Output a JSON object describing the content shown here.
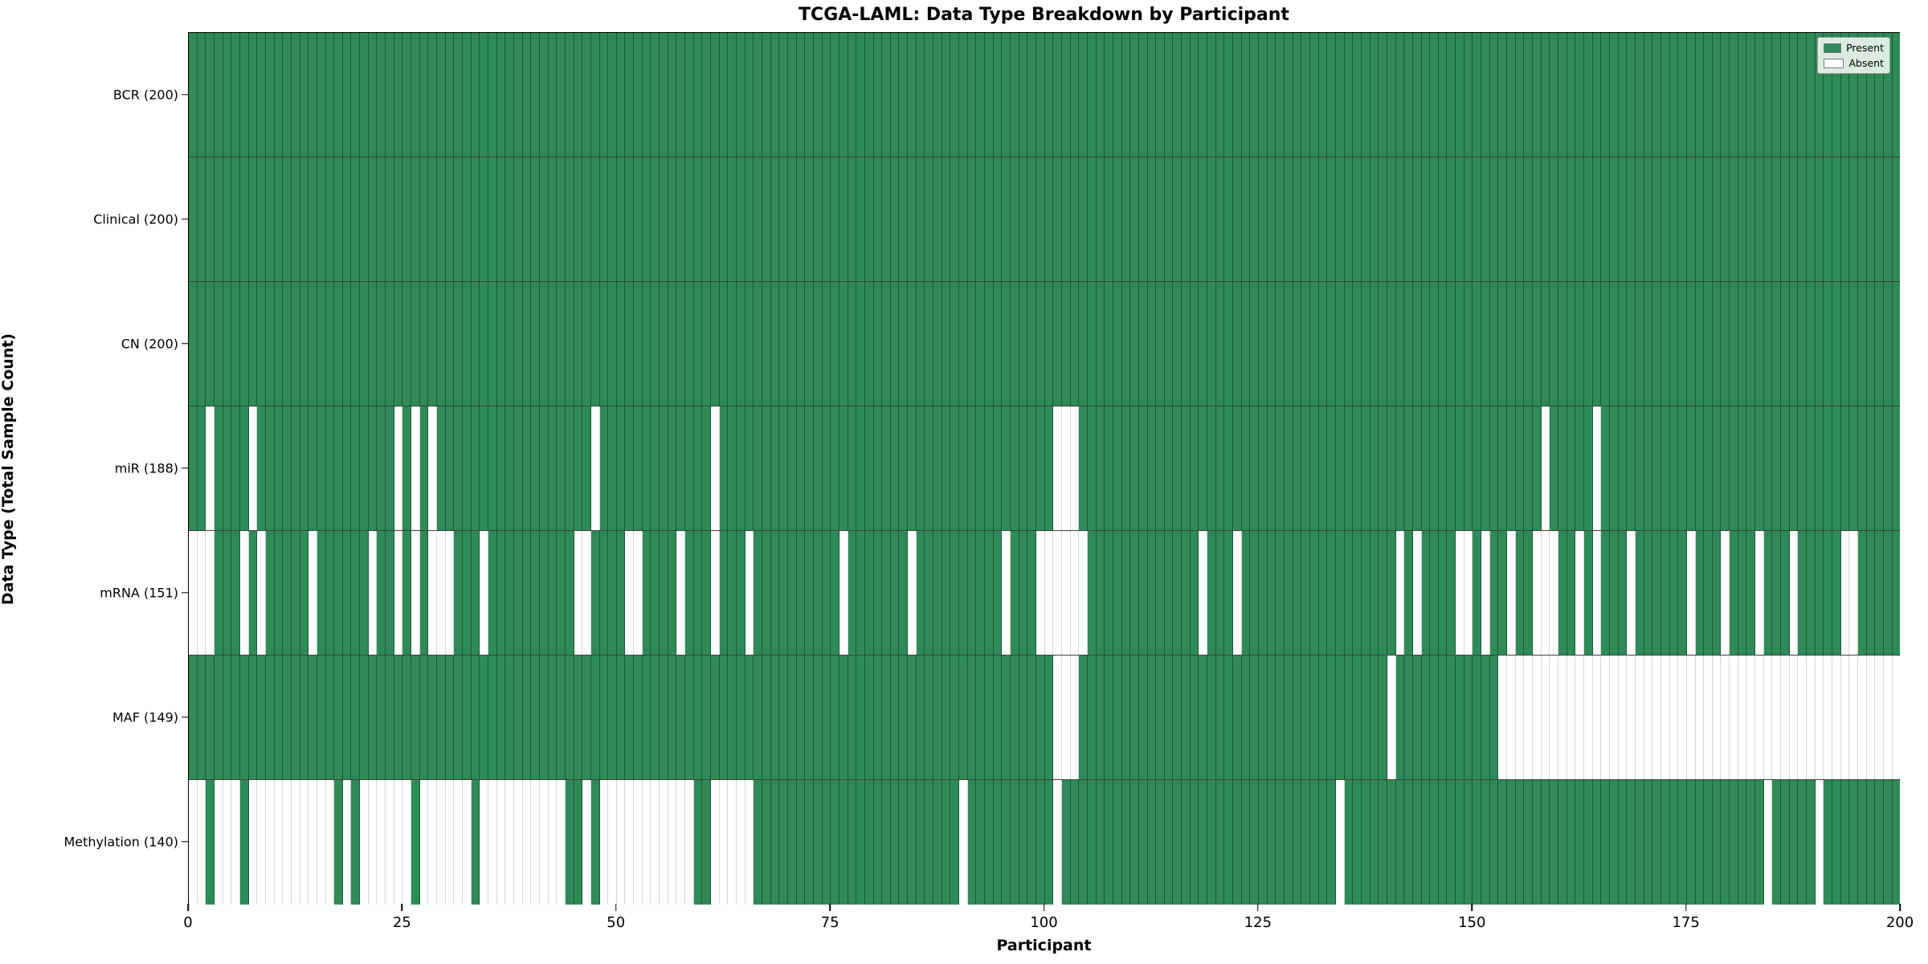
{
  "title": "TCGA-LAML: Data Type Breakdown by Participant",
  "xlabel": "Participant",
  "ylabel": "Data Type (Total Sample Count)",
  "legend": {
    "present_label": "Present",
    "absent_label": "Absent"
  },
  "colors": {
    "present": "#2E8B57",
    "absent": "#ffffff"
  },
  "x_ticks": [
    0,
    25,
    50,
    75,
    100,
    125,
    150,
    175,
    200
  ],
  "n_participants": 200,
  "chart_data": {
    "type": "heatmap",
    "title": "TCGA-LAML: Data Type Breakdown by Participant",
    "xlabel": "Participant",
    "ylabel": "Data Type (Total Sample Count)",
    "x_range": [
      0,
      200
    ],
    "legend_position": "upper right",
    "legend_entries": [
      "Present",
      "Absent"
    ],
    "rows": [
      {
        "name": "BCR",
        "label": "BCR (200)",
        "present_count": 200,
        "absent_count": 0,
        "absent_participants": []
      },
      {
        "name": "Clinical",
        "label": "Clinical (200)",
        "present_count": 200,
        "absent_count": 0,
        "absent_participants": []
      },
      {
        "name": "CN",
        "label": "CN (200)",
        "present_count": 200,
        "absent_count": 0,
        "absent_participants": []
      },
      {
        "name": "miR",
        "label": "miR (188)",
        "present_count": 188,
        "absent_count": 12,
        "absent_participants": [
          2,
          7,
          24,
          26,
          28,
          47,
          61,
          101,
          102,
          103,
          158,
          164
        ]
      },
      {
        "name": "mRNA",
        "label": "mRNA (151)",
        "present_count": 151,
        "absent_count": 49,
        "absent_participants": [
          0,
          1,
          2,
          6,
          8,
          14,
          21,
          24,
          26,
          28,
          29,
          30,
          34,
          45,
          46,
          51,
          52,
          57,
          61,
          65,
          76,
          84,
          95,
          99,
          100,
          101,
          102,
          103,
          104,
          118,
          122,
          141,
          143,
          148,
          149,
          151,
          154,
          157,
          158,
          159,
          162,
          164,
          168,
          175,
          179,
          183,
          187,
          193,
          194
        ]
      },
      {
        "name": "MAF",
        "label": "MAF (149)",
        "present_count": 149,
        "absent_count": 51,
        "absent_participants": [
          101,
          102,
          103,
          140,
          153,
          154,
          155,
          156,
          157,
          158,
          159,
          160,
          161,
          162,
          163,
          164,
          165,
          166,
          167,
          168,
          169,
          170,
          171,
          172,
          173,
          174,
          175,
          176,
          177,
          178,
          179,
          180,
          181,
          182,
          183,
          184,
          185,
          186,
          187,
          188,
          189,
          190,
          191,
          192,
          193,
          194,
          195,
          196,
          197,
          198,
          199
        ]
      },
      {
        "name": "Methylation",
        "label": "Methylation (140)",
        "present_count": 140,
        "absent_count": 60,
        "absent_participants": [
          0,
          1,
          3,
          4,
          5,
          7,
          8,
          9,
          10,
          11,
          12,
          13,
          14,
          15,
          16,
          18,
          20,
          21,
          22,
          23,
          24,
          25,
          27,
          28,
          29,
          30,
          31,
          32,
          34,
          35,
          36,
          37,
          38,
          39,
          40,
          41,
          42,
          43,
          46,
          48,
          49,
          50,
          51,
          52,
          53,
          54,
          55,
          56,
          57,
          58,
          61,
          62,
          63,
          64,
          65,
          90,
          101,
          134,
          184,
          190
        ]
      }
    ]
  }
}
